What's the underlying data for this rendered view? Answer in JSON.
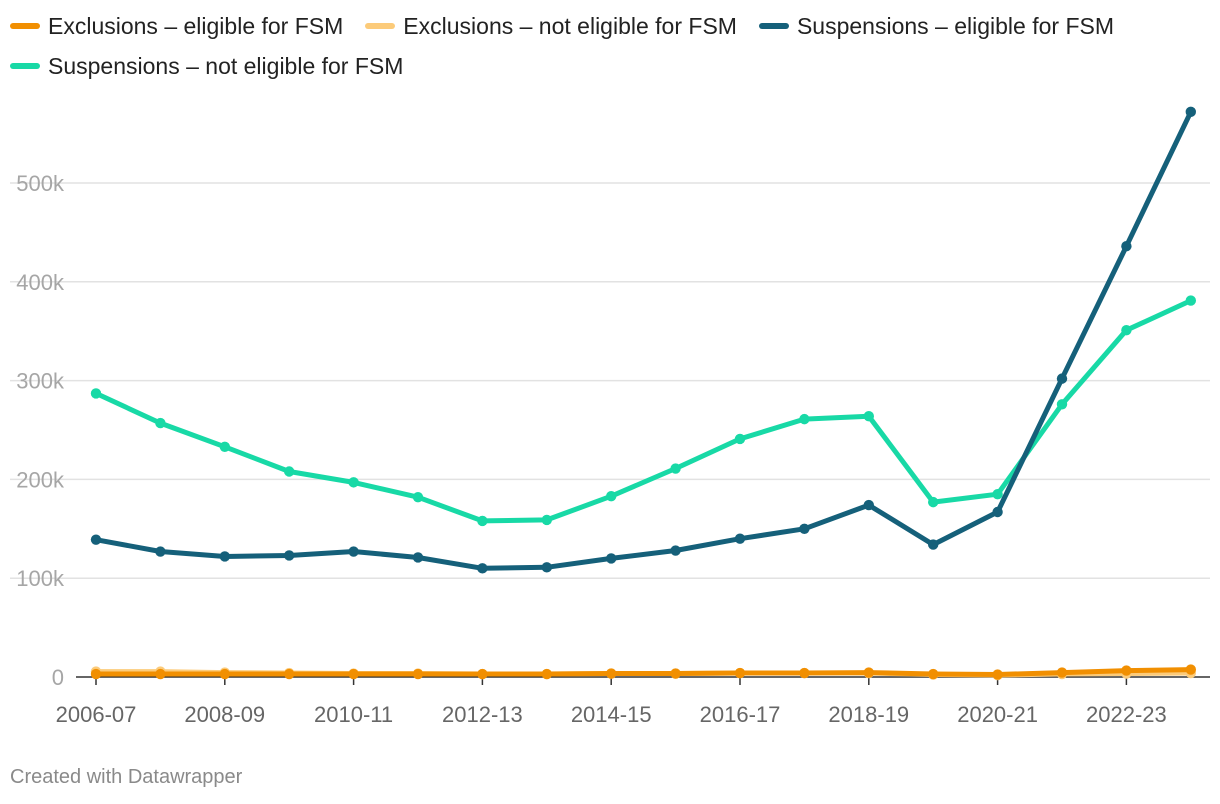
{
  "legend": [
    {
      "label": "Exclusions – eligible for FSM",
      "color": "#f18f01"
    },
    {
      "label": "Exclusions – not eligible for FSM",
      "color": "#fccb7a"
    },
    {
      "label": "Suspensions – eligible for FSM",
      "color": "#15607a"
    },
    {
      "label": "Suspensions – not eligible for FSM",
      "color": "#18d9a6"
    }
  ],
  "credit": "Created with Datawrapper",
  "chart_data": {
    "type": "line",
    "title": "",
    "xlabel": "",
    "ylabel": "",
    "ylim": [
      0,
      580000
    ],
    "yticks": [
      0,
      100000,
      200000,
      300000,
      400000,
      500000
    ],
    "ytick_labels": [
      "0",
      "100k",
      "200k",
      "300k",
      "400k",
      "500k"
    ],
    "grid": true,
    "categories": [
      "2006-07",
      "2007-08",
      "2008-09",
      "2009-10",
      "2010-11",
      "2011-12",
      "2012-13",
      "2013-14",
      "2014-15",
      "2015-16",
      "2016-17",
      "2017-18",
      "2018-19",
      "2019-20",
      "2020-21",
      "2021-22",
      "2022-23",
      "2023-24"
    ],
    "xtick_labels": [
      "2006-07",
      "2008-09",
      "2010-11",
      "2012-13",
      "2014-15",
      "2016-17",
      "2018-19",
      "2020-21",
      "2022-23"
    ],
    "series": [
      {
        "name": "Suspensions – not eligible for FSM",
        "color": "#18d9a6",
        "values": [
          287000,
          257000,
          233000,
          208000,
          197000,
          182000,
          158000,
          159000,
          183000,
          211000,
          241000,
          261000,
          264000,
          177000,
          185000,
          276000,
          351000,
          381000
        ]
      },
      {
        "name": "Suspensions – eligible for FSM",
        "color": "#15607a",
        "values": [
          139000,
          127000,
          122000,
          123000,
          127000,
          121000,
          110000,
          111000,
          120000,
          128000,
          140000,
          150000,
          174000,
          134000,
          167000,
          302000,
          436000,
          572000
        ]
      },
      {
        "name": "Exclusions – not eligible for FSM",
        "color": "#fccb7a",
        "values": [
          5500,
          5500,
          4500,
          4000,
          3500,
          3500,
          3000,
          3000,
          3500,
          3500,
          4000,
          4000,
          4000,
          2500,
          2000,
          3000,
          3500,
          4000
        ]
      },
      {
        "name": "Exclusions – eligible for FSM",
        "color": "#f18f01",
        "values": [
          3000,
          3000,
          3000,
          3000,
          3000,
          3000,
          3000,
          3000,
          3500,
          3500,
          4000,
          4000,
          4500,
          3000,
          2500,
          4500,
          6500,
          7500
        ]
      }
    ]
  }
}
